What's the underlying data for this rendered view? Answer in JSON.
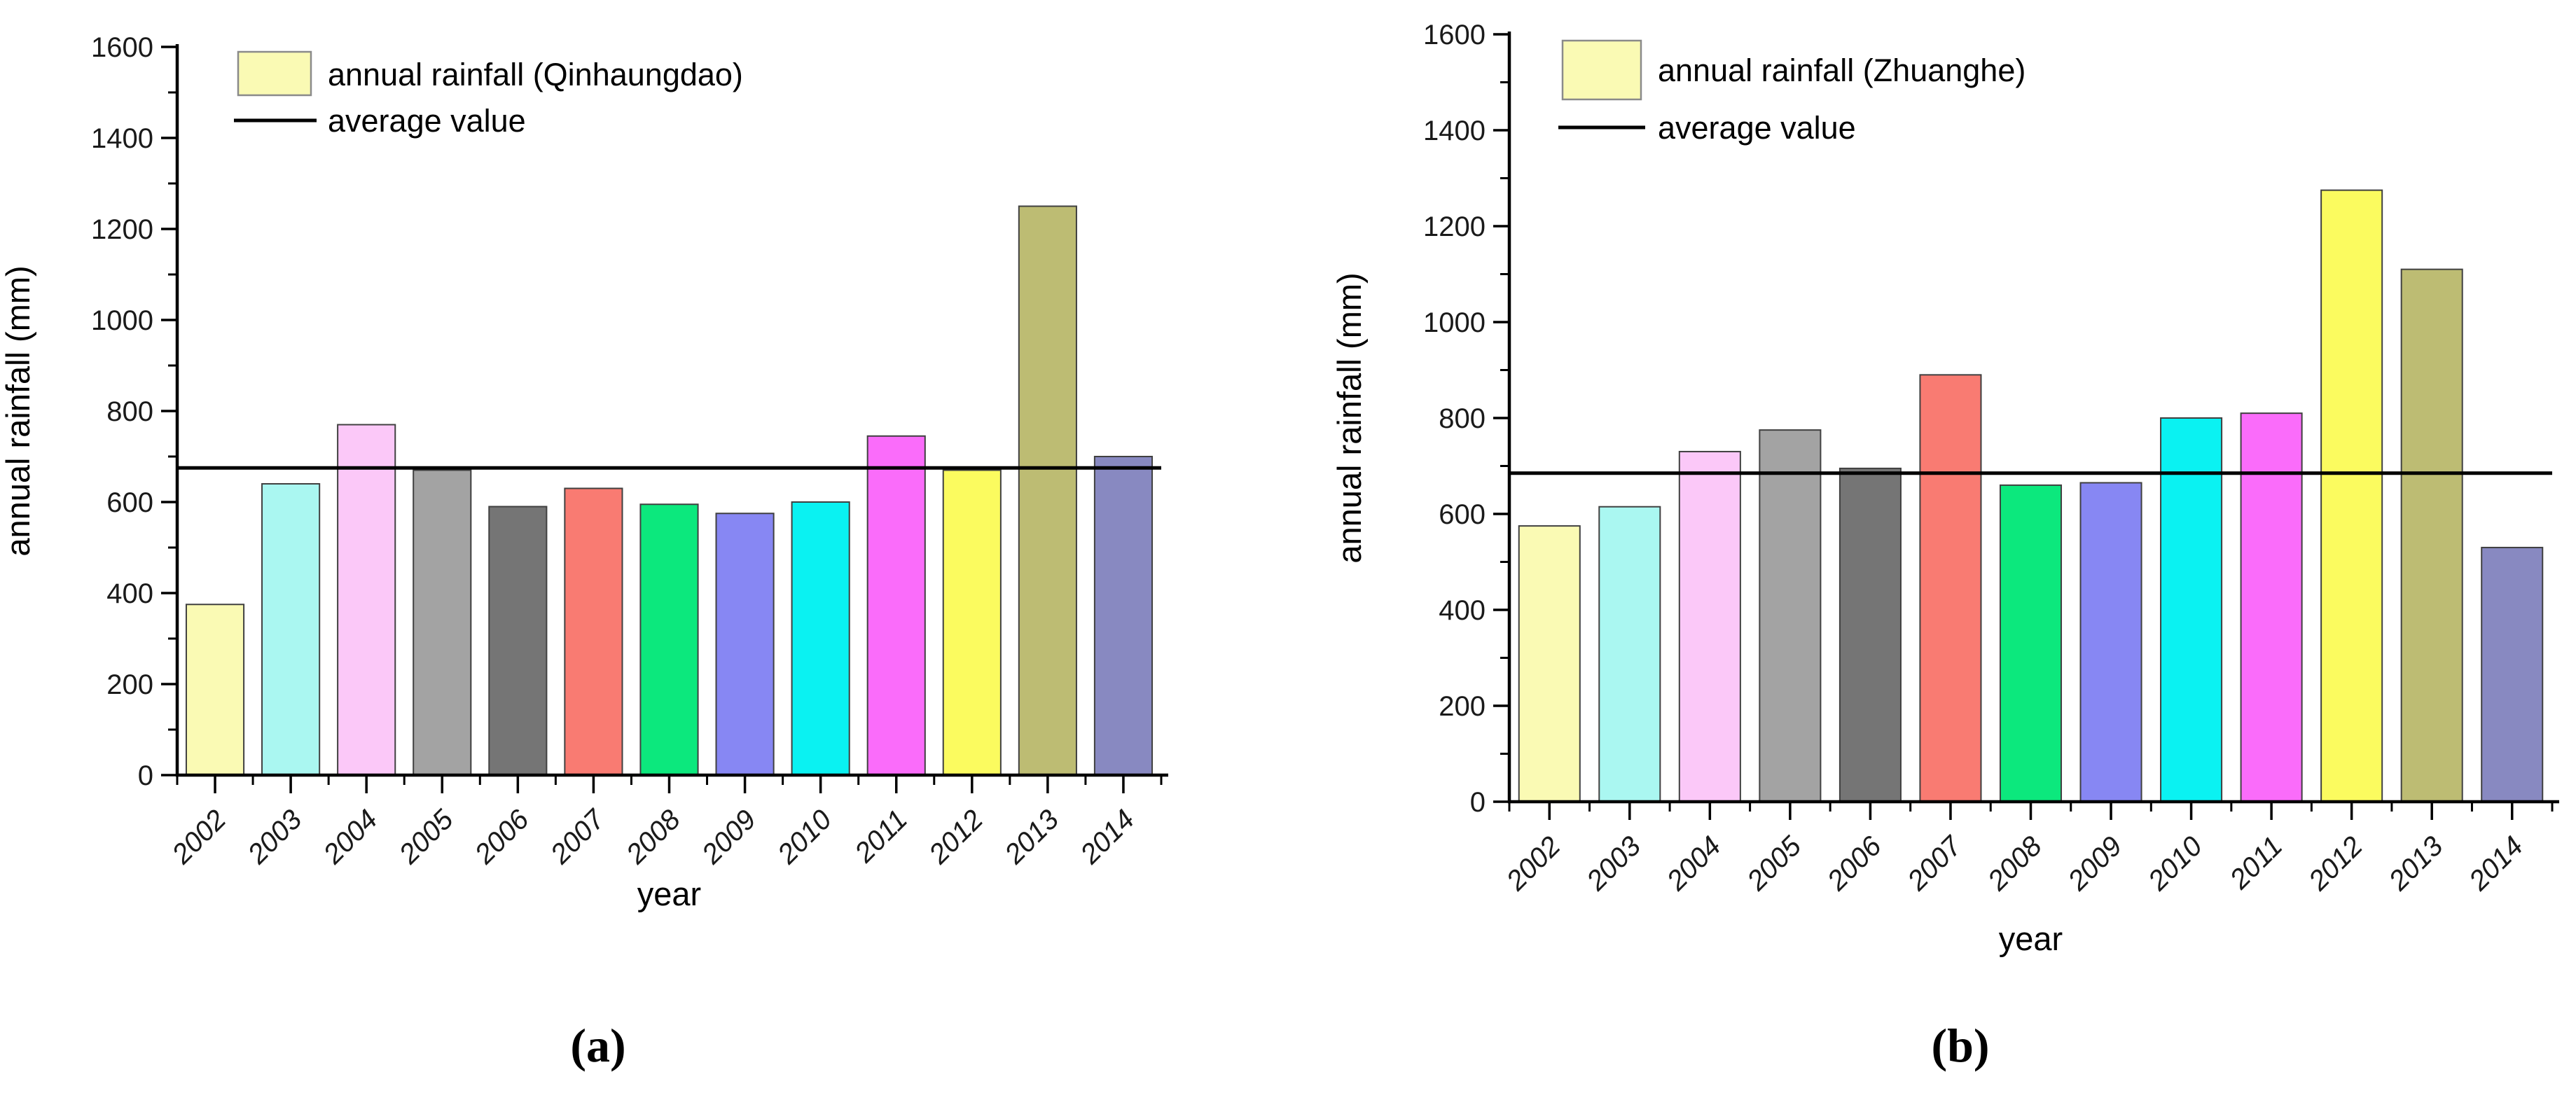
{
  "figure": {
    "background": "#ffffff",
    "panel_count": 2
  },
  "chart_data": [
    {
      "type": "bar",
      "panel": "a",
      "caption": "(a)",
      "series_name": "annual rainfall (Qinhaungdao)",
      "average_label": "average value",
      "average_value": 675,
      "xlabel": "year",
      "ylabel": "annual rainfall (mm)",
      "ylim": [
        0,
        1600
      ],
      "ytick_step": 200,
      "ytick_minor_step": 100,
      "grid": false,
      "legend_position": "top-left-inside",
      "categories": [
        "2002",
        "2003",
        "2004",
        "2005",
        "2006",
        "2007",
        "2008",
        "2009",
        "2010",
        "2011",
        "2012",
        "2013",
        "2014"
      ],
      "values": [
        375,
        640,
        770,
        670,
        590,
        630,
        595,
        575,
        600,
        745,
        670,
        1250,
        700
      ],
      "bar_colors": [
        "#FAFAB4",
        "#AAF7F1",
        "#FBC8F8",
        "#A3A3A3",
        "#757575",
        "#F97B72",
        "#0CE87D",
        "#8787F3",
        "#0AF2F2",
        "#FA6CFA",
        "#FBFB5F",
        "#BDBC73",
        "#8889C1"
      ],
      "legend_swatch_fill": "#FAFAB4",
      "colors": {
        "axis": "#000000",
        "average_line": "#000000",
        "bar_outline": "#404040",
        "legend_swatch_stroke": "#8a8a8a"
      }
    },
    {
      "type": "bar",
      "panel": "b",
      "caption": "(b)",
      "series_name": "annual rainfall (Zhuanghe)",
      "average_label": "average value",
      "average_value": 685,
      "xlabel": "year",
      "ylabel": "annual rainfall (mm)",
      "ylim": [
        0,
        1600
      ],
      "ytick_step": 200,
      "ytick_minor_step": 100,
      "grid": false,
      "legend_position": "top-left-inside",
      "categories": [
        "2002",
        "2003",
        "2004",
        "2005",
        "2006",
        "2007",
        "2008",
        "2009",
        "2010",
        "2011",
        "2012",
        "2013",
        "2014"
      ],
      "values": [
        575,
        615,
        730,
        775,
        695,
        890,
        660,
        665,
        800,
        810,
        1275,
        1110,
        530
      ],
      "bar_colors": [
        "#FAFAB4",
        "#AAF7F1",
        "#FBC8F8",
        "#A3A3A3",
        "#757575",
        "#F97B72",
        "#0CE87D",
        "#8787F3",
        "#0AF2F2",
        "#FA6CFA",
        "#FBFB5F",
        "#BDBC73",
        "#8889C1"
      ],
      "legend_swatch_fill": "#FAFAB4",
      "colors": {
        "axis": "#000000",
        "average_line": "#000000",
        "bar_outline": "#404040",
        "legend_swatch_stroke": "#8a8a8a"
      }
    }
  ]
}
